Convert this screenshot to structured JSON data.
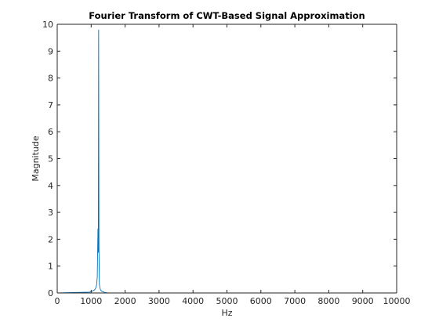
{
  "chart_data": {
    "type": "line",
    "title": "Fourier Transform of CWT-Based Signal Approximation",
    "xlabel": "Hz",
    "ylabel": "Magnitude",
    "xlim": [
      0,
      10000
    ],
    "ylim": [
      0,
      10
    ],
    "xticks": [
      0,
      1000,
      2000,
      3000,
      4000,
      5000,
      6000,
      7000,
      8000,
      9000,
      10000
    ],
    "yticks": [
      0,
      1,
      2,
      3,
      4,
      5,
      6,
      7,
      8,
      9,
      10
    ],
    "grid": false,
    "series": [
      {
        "color": "#0072BD",
        "x": [
          0,
          950,
          1000,
          1040,
          1080,
          1100,
          1120,
          1140,
          1160,
          1180,
          1200,
          1210,
          1220,
          1230,
          1240,
          1250,
          1260,
          1270,
          1280,
          1300,
          1320,
          1340,
          1360,
          1380,
          1400,
          1450,
          1500,
          1600,
          2000,
          3000,
          4000,
          5000,
          6000,
          7000,
          8000,
          9000,
          10000
        ],
        "y": [
          0.0,
          0.03,
          0.05,
          0.07,
          0.1,
          0.12,
          0.15,
          0.2,
          0.3,
          0.6,
          2.4,
          1.5,
          9.8,
          1.7,
          0.35,
          0.25,
          0.18,
          0.14,
          0.1,
          0.08,
          0.06,
          0.05,
          0.04,
          0.03,
          0.02,
          0.01,
          0.005,
          0.003,
          0.002,
          0.002,
          0.001,
          0.001,
          0.001,
          0.001,
          0.001,
          0.001,
          0.0
        ]
      }
    ]
  }
}
